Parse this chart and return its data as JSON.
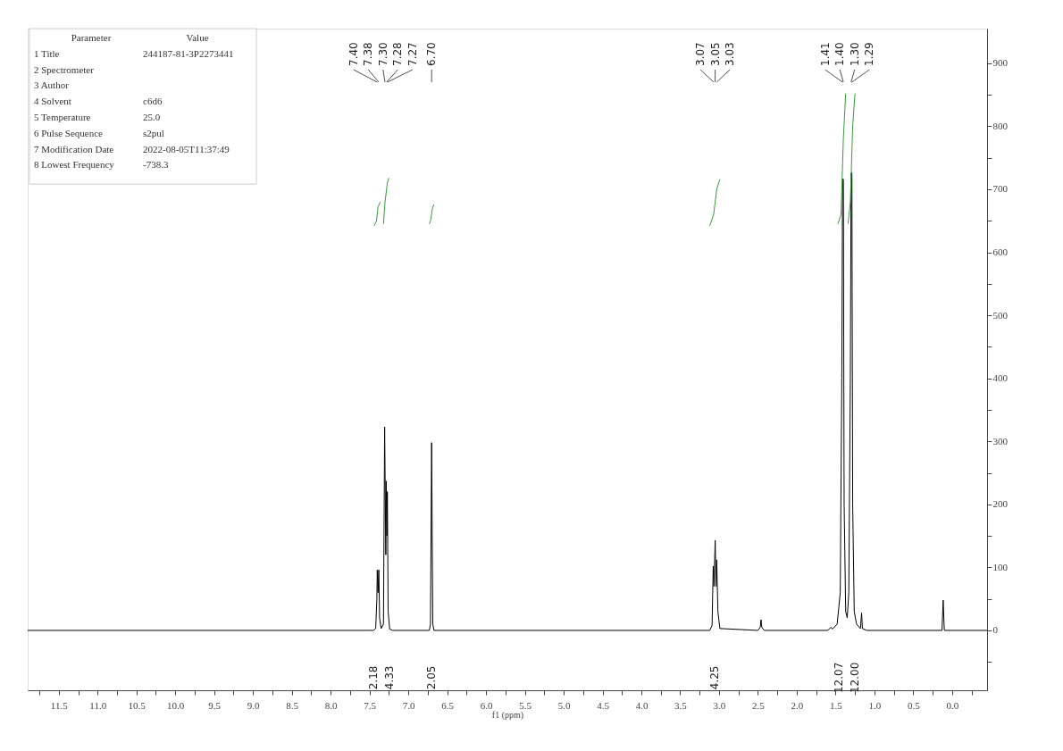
{
  "chart_data": {
    "type": "line",
    "xlabel": "f1 (ppm)",
    "grid": false,
    "xlim": [
      11.9,
      -0.45
    ],
    "ylim": [
      -95,
      955
    ],
    "xticks": [
      {
        "value": 11.75,
        "label": null
      },
      11.5,
      {
        "value": 11.25,
        "label": null
      },
      {
        "value": 11,
        "label": "11.0"
      },
      {
        "value": 10.75,
        "label": null
      },
      10.5,
      {
        "value": 10.25,
        "label": null
      },
      {
        "value": 10,
        "label": "10.0"
      },
      {
        "value": 9.75,
        "label": null
      },
      9.5,
      {
        "value": 9.25,
        "label": null
      },
      {
        "value": 9,
        "label": "9.0"
      },
      {
        "value": 8.75,
        "label": null
      },
      8.5,
      {
        "value": 8.25,
        "label": null
      },
      {
        "value": 8,
        "label": "8.0"
      },
      {
        "value": 7.75,
        "label": null
      },
      7.5,
      {
        "value": 7.25,
        "label": null
      },
      {
        "value": 7,
        "label": "7.0"
      },
      {
        "value": 6.75,
        "label": null
      },
      6.5,
      {
        "value": 6.25,
        "label": null
      },
      {
        "value": 6,
        "label": "6.0"
      },
      {
        "value": 5.75,
        "label": null
      },
      5.5,
      {
        "value": 5.25,
        "label": null
      },
      {
        "value": 5,
        "label": "5.0"
      },
      {
        "value": 4.75,
        "label": null
      },
      4.5,
      {
        "value": 4.25,
        "label": null
      },
      {
        "value": 4,
        "label": "4.0"
      },
      {
        "value": 3.75,
        "label": null
      },
      3.5,
      {
        "value": 3.25,
        "label": null
      },
      {
        "value": 3,
        "label": "3.0"
      },
      {
        "value": 2.75,
        "label": null
      },
      2.5,
      {
        "value": 2.25,
        "label": null
      },
      {
        "value": 2,
        "label": "2.0"
      },
      {
        "value": 1.75,
        "label": null
      },
      1.5,
      {
        "value": 1.25,
        "label": null
      },
      {
        "value": 1,
        "label": "1.0"
      },
      {
        "value": 0.75,
        "label": null
      },
      0.5,
      {
        "value": 0.25,
        "label": null
      },
      {
        "value": 0,
        "label": "0.0"
      },
      {
        "value": -0.25,
        "label": null
      }
    ],
    "yticks": [
      {
        "value": -50,
        "label": null
      },
      0,
      {
        "value": 50,
        "label": null
      },
      100,
      {
        "value": 150,
        "label": null
      },
      200,
      {
        "value": 250,
        "label": null
      },
      300,
      {
        "value": 350,
        "label": null
      },
      400,
      {
        "value": 450,
        "label": null
      },
      500,
      {
        "value": 550,
        "label": null
      },
      600,
      {
        "value": 650,
        "label": null
      },
      700,
      {
        "value": 750,
        "label": null
      },
      800,
      {
        "value": 850,
        "label": null
      },
      900
    ],
    "series": [
      {
        "color": "#000000",
        "x": [
          11.9,
          7.5,
          7.45,
          7.42,
          7.405,
          7.4,
          7.39,
          7.38,
          7.37,
          7.35,
          7.32,
          7.305,
          7.29,
          7.285,
          7.275,
          7.27,
          7.26,
          7.24,
          7.2,
          6.73,
          6.715,
          6.7,
          6.685,
          6.67,
          3.12,
          3.09,
          3.075,
          3.065,
          3.05,
          3.04,
          3.03,
          3.015,
          2.99,
          2.5,
          2.47,
          2.46,
          2.45,
          2.42,
          1.6,
          1.56,
          1.54,
          1.48,
          1.44,
          1.42,
          1.41,
          1.4,
          1.39,
          1.37,
          1.35,
          1.33,
          1.31,
          1.3,
          1.29,
          1.28,
          1.26,
          1.23,
          1.18,
          1.165,
          1.155,
          1.1,
          0.13,
          0.115,
          0.1,
          -0.45
        ],
        "values": [
          0,
          0,
          0,
          3,
          50,
          96,
          60,
          96,
          20,
          3,
          10,
          323,
          120,
          237,
          150,
          220,
          30,
          2,
          0,
          0,
          10,
          298,
          10,
          0,
          0,
          8,
          102,
          70,
          143,
          70,
          112,
          30,
          3,
          0,
          5,
          17,
          5,
          0,
          0,
          5,
          2,
          10,
          60,
          400,
          716,
          716,
          200,
          30,
          20,
          60,
          400,
          726,
          726,
          200,
          30,
          10,
          3,
          28,
          3,
          0,
          0,
          48,
          0,
          0
        ]
      },
      {
        "color": "#3a9a3a",
        "x": [
          7.44,
          7.41,
          7.39,
          7.36
        ],
        "values": [
          642,
          650,
          672,
          680
        ]
      },
      {
        "color": "#3a9a3a",
        "x": [
          7.32,
          7.3,
          7.27,
          7.25
        ],
        "values": [
          645,
          680,
          710,
          718
        ]
      },
      {
        "color": "#3a9a3a",
        "x": [
          6.73,
          6.71,
          6.69,
          6.67
        ],
        "values": [
          645,
          652,
          670,
          676
        ]
      },
      {
        "color": "#3a9a3a",
        "x": [
          3.12,
          3.07,
          3.03,
          2.99
        ],
        "values": [
          642,
          660,
          700,
          716
        ]
      },
      {
        "color": "#3a9a3a",
        "x": [
          1.47,
          1.43,
          1.4,
          1.37
        ],
        "values": [
          645,
          660,
          780,
          852
        ]
      },
      {
        "color": "#3a9a3a",
        "x": [
          1.34,
          1.31,
          1.28,
          1.25
        ],
        "values": [
          645,
          680,
          800,
          852
        ]
      }
    ],
    "annotations": [
      "Parameter\tValue",
      "1 Title\t244187-81-3P2273441",
      "2 Spectrometer",
      "3 Author",
      "4 Solvent\tc6d6",
      "5 Temperature\t25.0",
      "6 Pulse Sequence\ts2pul",
      "7 Modification Date\t2022-08-05T11:37:49",
      "8 Lowest Frequency\t-738.3",
      {
        "text": "7.40",
        "x": 7.4
      },
      {
        "text": "7.38",
        "x": 7.38
      },
      {
        "text": "7.30",
        "x": 7.3
      },
      {
        "text": "7.28",
        "x": 7.28
      },
      {
        "text": "7.27",
        "x": 7.27
      },
      {
        "text": "6.70",
        "x": 6.7
      },
      {
        "text": "3.07",
        "x": 3.07
      },
      {
        "text": "3.05",
        "x": 3.05
      },
      {
        "text": "3.03",
        "x": 3.03
      },
      {
        "text": "1.41",
        "x": 1.41
      },
      {
        "text": "1.40",
        "x": 1.4
      },
      {
        "text": "1.30",
        "x": 1.3
      },
      {
        "text": "1.29",
        "x": 1.29
      },
      "2.18",
      "4.33",
      "2.05",
      "4.25",
      "12.07",
      "12.00"
    ]
  }
}
